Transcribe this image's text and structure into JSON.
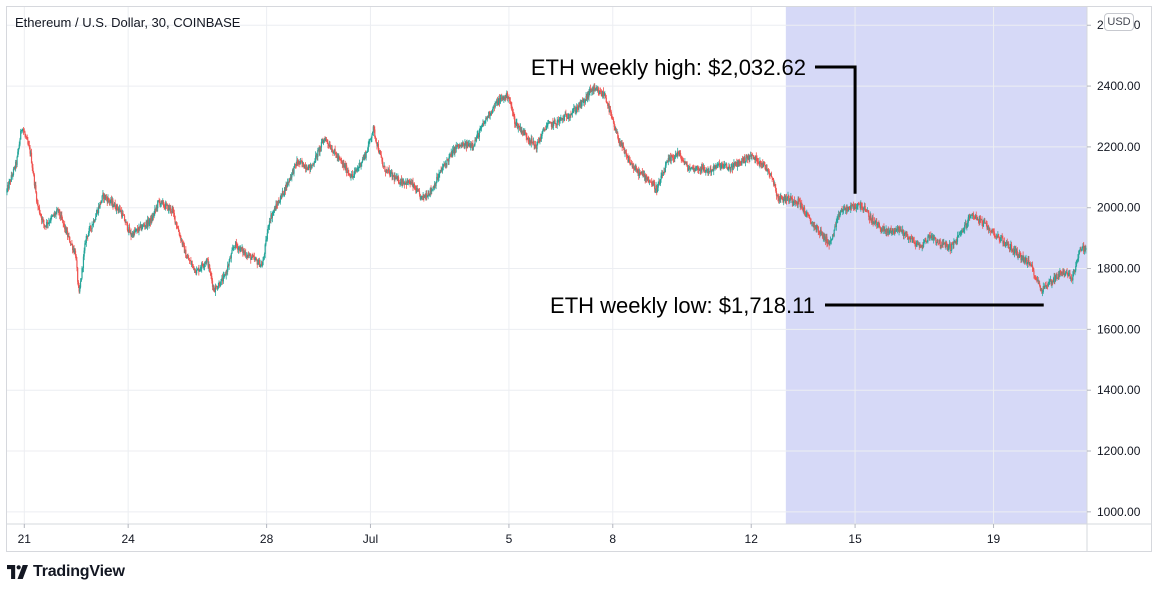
{
  "header": {
    "title": "Ethereum / U.S. Dollar, 30, COINBASE",
    "currency_label": "USD"
  },
  "branding": {
    "logo_name": "tradingview-logo-icon",
    "text": "TradingView"
  },
  "colors": {
    "up": "#26a69a",
    "down": "#ef5350",
    "highlight": "#d6d9f7",
    "grid": "#eceef2",
    "axis_text": "#131722"
  },
  "chart_data": {
    "type": "candlestick",
    "title": "Ethereum / U.S. Dollar, 30, COINBASE",
    "y_unit": "USD",
    "ylim": [
      960,
      2660
    ],
    "y_ticks": [
      {
        "value": 1000,
        "label": "1000.00"
      },
      {
        "value": 1200,
        "label": "1200.00"
      },
      {
        "value": 1400,
        "label": "1400.00"
      },
      {
        "value": 1600,
        "label": "1600.00"
      },
      {
        "value": 1800,
        "label": "1800.00"
      },
      {
        "value": 2000,
        "label": "2000.00"
      },
      {
        "value": 2200,
        "label": "2200.00"
      },
      {
        "value": 2400,
        "label": "2400.00"
      },
      {
        "value": 2600,
        "label": "2600.00"
      }
    ],
    "xlim_days": [
      0,
      31.2
    ],
    "x_ticks": [
      {
        "day": 0.5,
        "label": "21"
      },
      {
        "day": 3.5,
        "label": "24"
      },
      {
        "day": 7.5,
        "label": "28"
      },
      {
        "day": 10.5,
        "label": "Jul"
      },
      {
        "day": 14.5,
        "label": "5"
      },
      {
        "day": 17.5,
        "label": "8"
      },
      {
        "day": 21.5,
        "label": "12"
      },
      {
        "day": 24.5,
        "label": "15"
      },
      {
        "day": 28.5,
        "label": "19"
      }
    ],
    "highlight_range_days": [
      22.5,
      31.2
    ],
    "price_path": [
      [
        0.0,
        2050
      ],
      [
        0.3,
        2150
      ],
      [
        0.45,
        2270
      ],
      [
        0.7,
        2180
      ],
      [
        0.9,
        2010
      ],
      [
        1.1,
        1940
      ],
      [
        1.5,
        1990
      ],
      [
        1.8,
        1900
      ],
      [
        2.0,
        1850
      ],
      [
        2.1,
        1710
      ],
      [
        2.3,
        1900
      ],
      [
        2.5,
        1950
      ],
      [
        2.8,
        2040
      ],
      [
        3.3,
        1990
      ],
      [
        3.6,
        1910
      ],
      [
        4.2,
        1960
      ],
      [
        4.4,
        2020
      ],
      [
        4.8,
        1990
      ],
      [
        5.2,
        1840
      ],
      [
        5.5,
        1790
      ],
      [
        5.8,
        1830
      ],
      [
        6.0,
        1730
      ],
      [
        6.3,
        1770
      ],
      [
        6.6,
        1880
      ],
      [
        6.9,
        1850
      ],
      [
        7.4,
        1810
      ],
      [
        7.6,
        1960
      ],
      [
        8.0,
        2050
      ],
      [
        8.4,
        2150
      ],
      [
        8.8,
        2130
      ],
      [
        9.2,
        2230
      ],
      [
        9.6,
        2160
      ],
      [
        10.0,
        2100
      ],
      [
        10.4,
        2180
      ],
      [
        10.6,
        2260
      ],
      [
        10.9,
        2130
      ],
      [
        11.3,
        2090
      ],
      [
        11.7,
        2080
      ],
      [
        12.0,
        2030
      ],
      [
        12.3,
        2060
      ],
      [
        12.6,
        2130
      ],
      [
        13.0,
        2200
      ],
      [
        13.5,
        2210
      ],
      [
        13.9,
        2300
      ],
      [
        14.2,
        2350
      ],
      [
        14.5,
        2370
      ],
      [
        14.7,
        2280
      ],
      [
        15.0,
        2240
      ],
      [
        15.3,
        2200
      ],
      [
        15.6,
        2270
      ],
      [
        15.9,
        2280
      ],
      [
        16.3,
        2310
      ],
      [
        16.7,
        2350
      ],
      [
        16.9,
        2390
      ],
      [
        17.1,
        2380
      ],
      [
        17.3,
        2370
      ],
      [
        17.6,
        2250
      ],
      [
        17.9,
        2170
      ],
      [
        18.2,
        2120
      ],
      [
        18.5,
        2100
      ],
      [
        18.8,
        2060
      ],
      [
        19.1,
        2150
      ],
      [
        19.4,
        2180
      ],
      [
        19.7,
        2130
      ],
      [
        20.0,
        2130
      ],
      [
        20.3,
        2120
      ],
      [
        20.6,
        2140
      ],
      [
        20.9,
        2130
      ],
      [
        21.2,
        2150
      ],
      [
        21.5,
        2170
      ],
      [
        21.8,
        2150
      ],
      [
        22.1,
        2110
      ],
      [
        22.3,
        2030
      ],
      [
        22.6,
        2030
      ],
      [
        22.9,
        2020
      ],
      [
        23.2,
        1960
      ],
      [
        23.5,
        1920
      ],
      [
        23.8,
        1880
      ],
      [
        24.1,
        1990
      ],
      [
        24.4,
        2000
      ],
      [
        24.7,
        2010
      ],
      [
        25.0,
        1960
      ],
      [
        25.4,
        1920
      ],
      [
        25.8,
        1930
      ],
      [
        26.1,
        1900
      ],
      [
        26.4,
        1870
      ],
      [
        26.7,
        1910
      ],
      [
        27.0,
        1880
      ],
      [
        27.3,
        1870
      ],
      [
        27.6,
        1920
      ],
      [
        27.9,
        1980
      ],
      [
        28.2,
        1950
      ],
      [
        28.6,
        1910
      ],
      [
        29.0,
        1870
      ],
      [
        29.3,
        1840
      ],
      [
        29.6,
        1810
      ],
      [
        29.9,
        1730
      ],
      [
        30.2,
        1760
      ],
      [
        30.5,
        1790
      ],
      [
        30.8,
        1770
      ],
      [
        31.0,
        1860
      ],
      [
        31.2,
        1870
      ]
    ],
    "annotations": [
      {
        "text": "ETH weekly high: $2,032.62",
        "anchor_day": 24.5,
        "anchor_value": 2032.62,
        "elbow_value": 2420,
        "align": "left-of-line"
      },
      {
        "text": "ETH weekly low: $1,718.11",
        "anchor_day": 29.95,
        "anchor_value": 1718.11,
        "align": "left-of-line"
      }
    ]
  }
}
